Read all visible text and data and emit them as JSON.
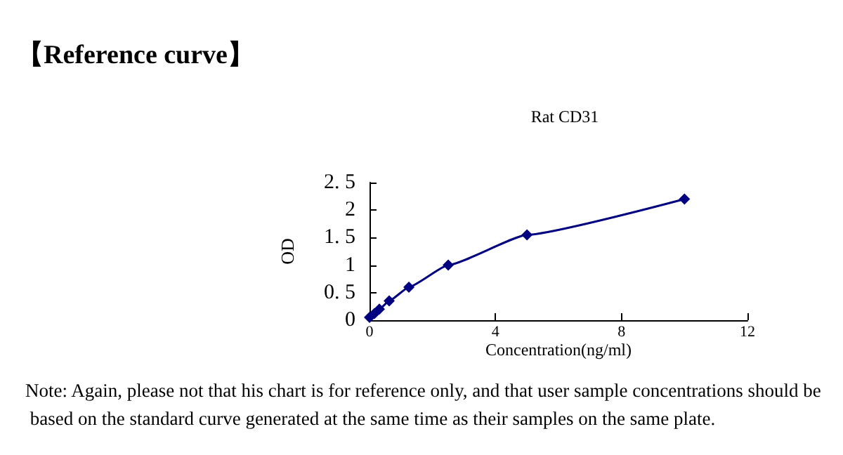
{
  "chart_data": {
    "type": "line",
    "title": "Rat CD31",
    "xlabel": "Concentration(ng/ml)",
    "ylabel": "OD",
    "annotations": [
      "【Reference curve】",
      "Note: Again, please not that his chart is for reference only, and that user sample concentrations should be based on the standard curve generated at the same time as their samples on the same plate."
    ],
    "x": [
      0,
      0.156,
      0.3125,
      0.625,
      1.25,
      2.5,
      5,
      10
    ],
    "series": [
      {
        "color": "#000080",
        "values": [
          0.05,
          0.12,
          0.2,
          0.35,
          0.6,
          1.0,
          1.55,
          2.2
        ]
      }
    ],
    "xlim": [
      0,
      12
    ],
    "xticks": [
      0,
      4,
      8,
      12
    ],
    "ylim": [
      0,
      2.5
    ],
    "yticks": [
      {
        "value": 0,
        "label": "0"
      },
      {
        "value": 0.5,
        "label": "0. 5"
      },
      {
        "value": 1,
        "label": "1"
      },
      {
        "value": 1.5,
        "label": "1. 5"
      },
      {
        "value": 2,
        "label": "2"
      },
      {
        "value": 2.5,
        "label": "2. 5"
      }
    ],
    "grid": false,
    "marker": "diamond",
    "line_style": "solid"
  }
}
